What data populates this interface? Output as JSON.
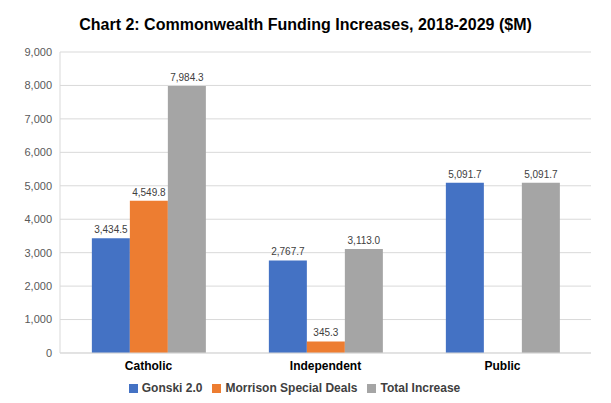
{
  "chart_data": {
    "type": "bar",
    "title": "Chart 2: Commonwealth Funding Increases, 2018-2029 ($M)",
    "categories": [
      "Catholic",
      "Independent",
      "Public"
    ],
    "series": [
      {
        "name": "Gonski 2.0",
        "color": "#4472c4",
        "values": [
          3434.5,
          2767.7,
          5091.7
        ],
        "value_labels": [
          "3,434.5",
          "2,767.7",
          "5,091.7"
        ]
      },
      {
        "name": "Morrison  Special Deals",
        "color": "#ed7d31",
        "values": [
          4549.8,
          345.3,
          0
        ],
        "value_labels": [
          "4,549.8",
          "345.3",
          "-"
        ]
      },
      {
        "name": "Total Increase",
        "color": "#a5a5a5",
        "values": [
          7984.3,
          3113.0,
          5091.7
        ],
        "value_labels": [
          "7,984.3",
          "3,113.0",
          "5,091.7"
        ]
      }
    ],
    "ylim": [
      0,
      9000
    ],
    "yticks": [
      0,
      {
        "value": 1000,
        "label": "1,000"
      },
      {
        "value": 2000,
        "label": "2,000"
      },
      {
        "value": 3000,
        "label": "3,000"
      },
      {
        "value": 4000,
        "label": "4,000"
      },
      {
        "value": 5000,
        "label": "5,000"
      },
      {
        "value": 6000,
        "label": "6,000"
      },
      {
        "value": 7000,
        "label": "7,000"
      },
      {
        "value": 8000,
        "label": "8,000"
      },
      {
        "value": 9000,
        "label": "9,000"
      }
    ],
    "grid": true,
    "legend": "bottom",
    "data_labels": true
  }
}
